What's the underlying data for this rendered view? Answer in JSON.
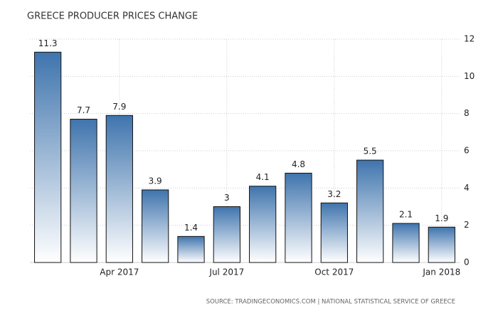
{
  "chart_data": {
    "type": "bar",
    "title": "GREECE PRODUCER PRICES CHANGE",
    "categories": [
      null,
      null,
      "Apr 2017",
      null,
      null,
      "Jul 2017",
      null,
      null,
      "Oct 2017",
      null,
      null,
      "Jan 2018"
    ],
    "values": [
      11.3,
      7.7,
      7.9,
      3.9,
      1.4,
      3,
      4.1,
      4.8,
      3.2,
      5.5,
      2.1,
      1.9
    ],
    "color": "#3f74ad",
    "ylim": [
      0,
      12
    ],
    "yticks": [
      0,
      2,
      4,
      6,
      8,
      10,
      12
    ],
    "grid": true,
    "source": "SOURCE: TRADINGECONOMICS.COM | NATIONAL STATISTICAL SERVICE OF GREECE"
  }
}
